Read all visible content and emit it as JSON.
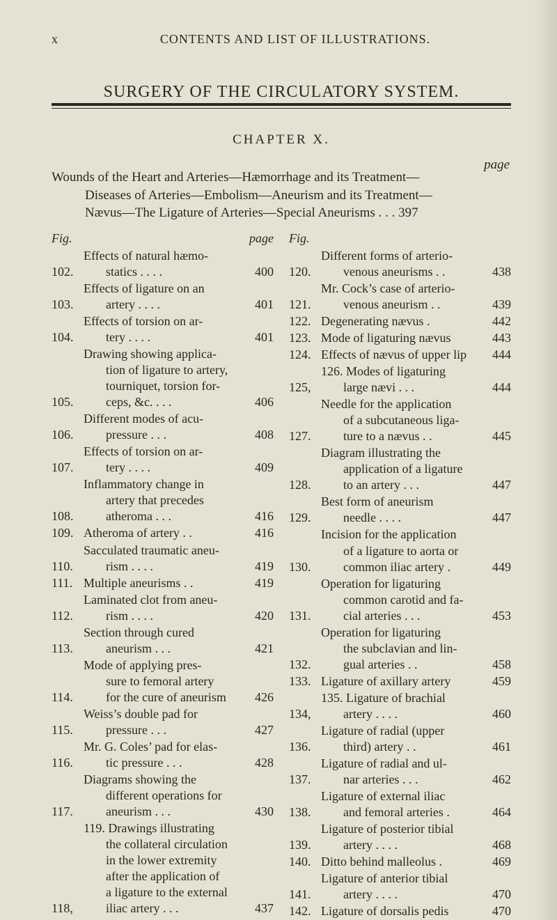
{
  "running": {
    "folio": "x",
    "title": "CONTENTS AND LIST OF ILLUSTRATIONS."
  },
  "section_title": "SURGERY OF THE CIRCULATORY SYSTEM.",
  "chapter_head": "CHAPTER X.",
  "page_label": "page",
  "chapter_description_lines": [
    "Wounds of the Heart and Arteries—Hæmorrhage and its Treatment—",
    "Diseases of Arteries—Embolism—Aneurism and its Treatment—",
    "Nævus—The Ligature of Arteries—Special Aneurisms .   .   . 397"
  ],
  "col_head": {
    "fig": "Fig.",
    "page": "page",
    "fig2": "Fig."
  },
  "left": [
    {
      "n": "102.",
      "lines": [
        "Effects of natural hæmo-",
        "statics .   .   .   ."
      ],
      "p": "400"
    },
    {
      "n": "103.",
      "lines": [
        "Effects of ligature on an",
        "artery .   .   .   ."
      ],
      "p": "401"
    },
    {
      "n": "104.",
      "lines": [
        "Effects of torsion on ar-",
        "tery   .   .   .   ."
      ],
      "p": "401"
    },
    {
      "n": "105.",
      "lines": [
        "Drawing showing applica-",
        "tion of ligature to artery,",
        "tourniquet, torsion for-",
        "ceps, &c.   .   .   ."
      ],
      "p": "406"
    },
    {
      "n": "106.",
      "lines": [
        "Different modes of acu-",
        "pressure   .   .   ."
      ],
      "p": "408"
    },
    {
      "n": "107.",
      "lines": [
        "Effects of torsion on ar-",
        "tery   .   .   .   ."
      ],
      "p": "409"
    },
    {
      "n": "108.",
      "lines": [
        "Inflammatory change in",
        "artery that precedes",
        "atheroma   .   .   ."
      ],
      "p": "416"
    },
    {
      "n": "109.",
      "lines": [
        "Atheroma of artery .   ."
      ],
      "p": "416"
    },
    {
      "n": "110.",
      "lines": [
        "Sacculated traumatic aneu-",
        "rism   .   .   .   ."
      ],
      "p": "419"
    },
    {
      "n": "111.",
      "lines": [
        "Multiple aneurisms .   ."
      ],
      "p": "419"
    },
    {
      "n": "112.",
      "lines": [
        "Laminated clot from aneu-",
        "rism   .   .   .   ."
      ],
      "p": "420"
    },
    {
      "n": "113.",
      "lines": [
        "Section through cured",
        "aneurism   .   .   ."
      ],
      "p": "421"
    },
    {
      "n": "114.",
      "lines": [
        "Mode of applying pres-",
        "sure to femoral artery",
        "for the cure of aneurism"
      ],
      "p": "426"
    },
    {
      "n": "115.",
      "lines": [
        "Weiss’s double pad for",
        "pressure   .   .   ."
      ],
      "p": "427"
    },
    {
      "n": "116.",
      "lines": [
        "Mr. G. Coles’ pad for elas-",
        "tic pressure .   .   ."
      ],
      "p": "428"
    },
    {
      "n": "117.",
      "lines": [
        "Diagrams showing the",
        "different operations for",
        "aneurism   .   .   ."
      ],
      "p": "430"
    },
    {
      "n": "118,",
      "lines": [
        "119. Drawings illustrating",
        "the collateral circulation",
        "in the lower extremity",
        "after the application of",
        "a ligature to the external",
        "iliac artery .   .   ."
      ],
      "p": "437"
    }
  ],
  "right": [
    {
      "n": "120.",
      "lines": [
        "Different forms of arterio-",
        "venous aneurisms .   ."
      ],
      "p": "438"
    },
    {
      "n": "121.",
      "lines": [
        "Mr. Cock’s case of arterio-",
        "venous aneurism .   ."
      ],
      "p": "439"
    },
    {
      "n": "122.",
      "lines": [
        "Degenerating nævus   ."
      ],
      "p": "442"
    },
    {
      "n": "123.",
      "lines": [
        "Mode of ligaturing nævus"
      ],
      "p": "443"
    },
    {
      "n": "124.",
      "lines": [
        "Effects of nævus of upper lip"
      ],
      "p": "444"
    },
    {
      "n": "125,",
      "lines": [
        "126. Modes of ligaturing",
        "large nævi   .   .   ."
      ],
      "p": "444"
    },
    {
      "n": "127.",
      "lines": [
        "Needle for the application",
        "of a subcutaneous liga-",
        "ture to a nævus .   ."
      ],
      "p": "445"
    },
    {
      "n": "128.",
      "lines": [
        "Diagram illustrating the",
        "application of a ligature",
        "to an artery .   .   ."
      ],
      "p": "447"
    },
    {
      "n": "129.",
      "lines": [
        "Best form of aneurism",
        "needle .   .   .   ."
      ],
      "p": "447"
    },
    {
      "n": "130.",
      "lines": [
        "Incision for the application",
        "of a ligature to aorta or",
        "common iliac artery   ."
      ],
      "p": "449"
    },
    {
      "n": "131.",
      "lines": [
        "Operation for ligaturing",
        "common carotid and fa-",
        "cial arteries .   .   ."
      ],
      "p": "453"
    },
    {
      "n": "132.",
      "lines": [
        "Operation for ligaturing",
        "the subclavian and lin-",
        "gual arteries   .   ."
      ],
      "p": "458"
    },
    {
      "n": "133.",
      "lines": [
        "Ligature of axillary artery"
      ],
      "p": "459"
    },
    {
      "n": "134,",
      "lines": [
        "135. Ligature of brachial",
        "artery .   .   .   ."
      ],
      "p": "460"
    },
    {
      "n": "136.",
      "lines": [
        "Ligature of radial (upper",
        "third) artery   .   ."
      ],
      "p": "461"
    },
    {
      "n": "137.",
      "lines": [
        "Ligature of radial and ul-",
        "nar arteries .   .   ."
      ],
      "p": "462"
    },
    {
      "n": "138.",
      "lines": [
        "Ligature of external iliac",
        "and femoral arteries   ."
      ],
      "p": "464"
    },
    {
      "n": "139.",
      "lines": [
        "Ligature of posterior tibial",
        "artery .   .   .   ."
      ],
      "p": "468"
    },
    {
      "n": "140.",
      "lines": [
        "Ditto behind malleolus   ."
      ],
      "p": "469"
    },
    {
      "n": "141.",
      "lines": [
        "Ligature of anterior tibial",
        "artery .   .   .   ."
      ],
      "p": "470"
    },
    {
      "n": "142.",
      "lines": [
        "Ligature of dorsalis pedis"
      ],
      "p": "470"
    }
  ]
}
